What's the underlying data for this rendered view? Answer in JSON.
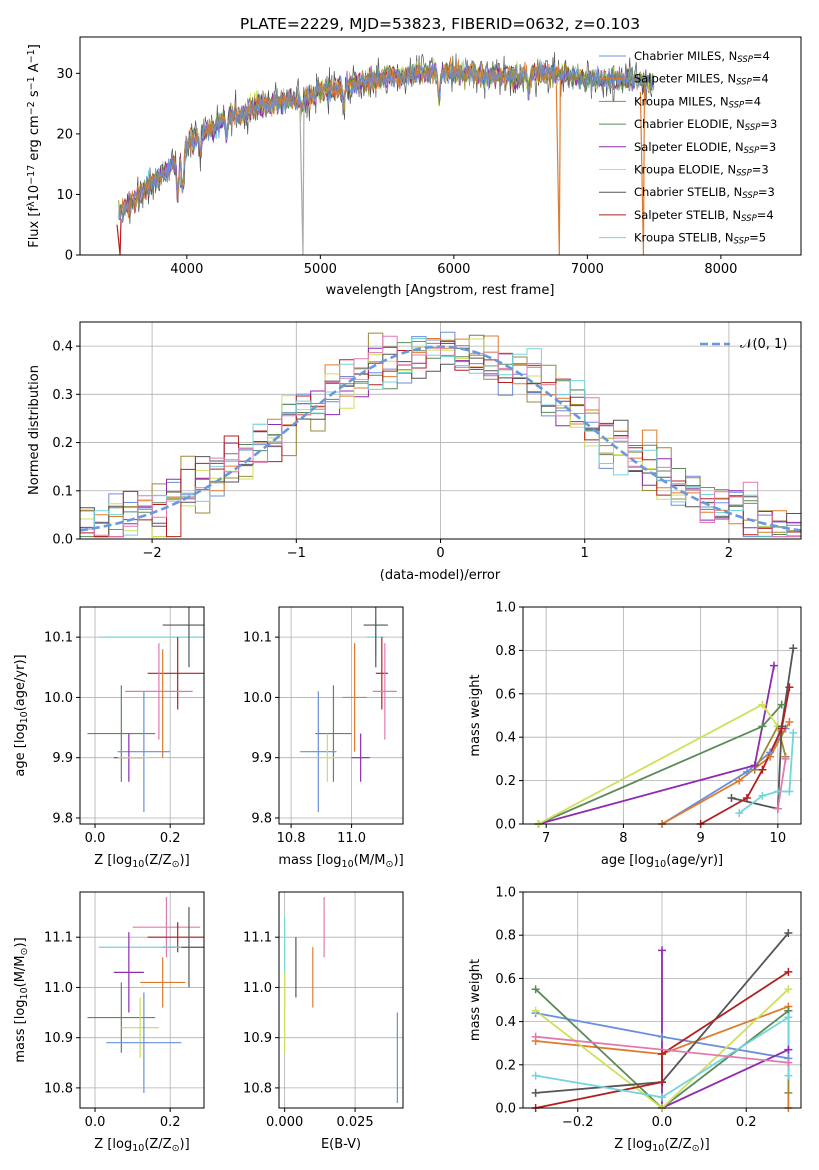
{
  "figure": {
    "title": "PLATE=2229, MJD=53823, FIBERID=0632, z=0.103"
  },
  "colors": {
    "Chabrier MILES": "#6a8fdc",
    "Salpeter MILES": "#e07b2c",
    "Kroupa MILES": "#9a8a3a",
    "Chabrier ELODIE": "#5a8a5a",
    "Salpeter ELODIE": "#8e2bb0",
    "Kroupa ELODIE": "#cfe05a",
    "Chabrier STELIB": "#555555",
    "Salpeter STELIB": "#b22020",
    "Kroupa STELIB": "#72d4dc",
    "extra": "#e07ab0"
  },
  "chart_data": [
    {
      "id": "spectrum",
      "type": "line",
      "xlabel": "wavelength [Angstrom, rest frame]",
      "ylabel": "Flux [f$_\\lambda$10$^{-17}$ erg cm$^{-2}$ s$^{-1}$ A$^{-1}$]",
      "ylabel_parts": [
        "Flux [f",
        "λ",
        "10",
        "−17",
        " erg cm",
        "−2",
        " s",
        "−1",
        " A",
        "−1",
        "]"
      ],
      "xlim": [
        3200,
        8600
      ],
      "ylim": [
        0,
        36
      ],
      "xticks": [
        4000,
        5000,
        6000,
        7000,
        8000
      ],
      "yticks": [
        0,
        10,
        20,
        30
      ],
      "legend_placement": "right",
      "legend": [
        {
          "label": "Chabrier MILES, N",
          "sub": "SSP",
          "suffix": "=4",
          "color_key": "Chabrier MILES"
        },
        {
          "label": "Salpeter MILES, N",
          "sub": "SSP",
          "suffix": "=4",
          "color_key": "Salpeter MILES"
        },
        {
          "label": "Kroupa MILES, N",
          "sub": "SSP",
          "suffix": "=4",
          "color_key": "Kroupa MILES"
        },
        {
          "label": "Chabrier ELODIE, N",
          "sub": "SSP",
          "suffix": "=3",
          "color_key": "Chabrier ELODIE"
        },
        {
          "label": "Salpeter ELODIE, N",
          "sub": "SSP",
          "suffix": "=3",
          "color_key": "Salpeter ELODIE"
        },
        {
          "label": "Kroupa ELODIE, N",
          "sub": "SSP",
          "suffix": "=3",
          "color_key": "Kroupa ELODIE"
        },
        {
          "label": "Chabrier STELIB, N",
          "sub": "SSP",
          "suffix": "=3",
          "color_key": "Chabrier STELIB"
        },
        {
          "label": "Salpeter STELIB, N",
          "sub": "SSP",
          "suffix": "=4",
          "color_key": "Salpeter STELIB"
        },
        {
          "label": "Kroupa STELIB, N",
          "sub": "SSP",
          "suffix": "=5",
          "color_key": "Kroupa STELIB"
        }
      ],
      "continuum": [
        [
          3500,
          7
        ],
        [
          3600,
          9
        ],
        [
          3700,
          11
        ],
        [
          3800,
          13
        ],
        [
          3900,
          15
        ],
        [
          4000,
          18
        ],
        [
          4100,
          20
        ],
        [
          4200,
          21
        ],
        [
          4300,
          23
        ],
        [
          4400,
          23
        ],
        [
          4500,
          24.5
        ],
        [
          4600,
          25
        ],
        [
          4700,
          25.5
        ],
        [
          4800,
          25.5
        ],
        [
          4900,
          26
        ],
        [
          5000,
          27
        ],
        [
          5100,
          27.5
        ],
        [
          5200,
          28
        ],
        [
          5300,
          28.5
        ],
        [
          5400,
          29
        ],
        [
          5500,
          29.5
        ],
        [
          5600,
          29.5
        ],
        [
          5700,
          30
        ],
        [
          5800,
          30
        ],
        [
          5900,
          30.5
        ],
        [
          6000,
          30
        ],
        [
          6100,
          30
        ],
        [
          6200,
          29.5
        ],
        [
          6300,
          29.5
        ],
        [
          6400,
          29.5
        ],
        [
          6500,
          29.5
        ],
        [
          6600,
          30
        ],
        [
          6700,
          30
        ],
        [
          6800,
          30
        ],
        [
          6900,
          29.5
        ],
        [
          7000,
          29
        ],
        [
          7100,
          29
        ],
        [
          7200,
          29
        ],
        [
          7300,
          29
        ],
        [
          7400,
          29
        ],
        [
          7500,
          28.5
        ]
      ],
      "absorption_features": [
        [
          3933,
          10
        ],
        [
          3968,
          11
        ],
        [
          4101,
          17
        ],
        [
          4300,
          20
        ],
        [
          4861,
          24
        ],
        [
          5175,
          25
        ],
        [
          5890,
          26
        ],
        [
          6563,
          27
        ]
      ],
      "data_dropouts": [
        [
          3500,
          0
        ],
        [
          4870,
          0
        ],
        [
          6790,
          0
        ],
        [
          7420,
          0
        ]
      ]
    },
    {
      "id": "residual-hist",
      "type": "line",
      "xlabel": "(data-model)/error",
      "ylabel": "Normed distribution",
      "xlim": [
        -2.5,
        2.5
      ],
      "ylim": [
        0,
        0.45
      ],
      "xticks": [
        -2,
        -1,
        0,
        1,
        2
      ],
      "yticks": [
        0.0,
        0.1,
        0.2,
        0.3,
        0.4
      ],
      "legend": [
        "𝒩(0, 1)"
      ],
      "legend_placement": "top-right",
      "bin_width": 0.1,
      "gaussian": {
        "mean": 0,
        "sigma": 1
      }
    },
    {
      "id": "age-vs-Z",
      "type": "scatter",
      "xlabel_parts": [
        "Z [log",
        "10",
        "(Z/Z",
        "⊙",
        ")]"
      ],
      "ylabel_parts": [
        "age  [log",
        "10",
        "(age/yr)]"
      ],
      "xlim": [
        -0.04,
        0.29
      ],
      "ylim": [
        9.79,
        10.15
      ],
      "xticks": [
        "0.0",
        "0.2"
      ],
      "yticks": [
        "9.8",
        "9.9",
        "10.0",
        "10.1"
      ],
      "errorbars": [
        {
          "color_key": "Kroupa STELIB",
          "x": 0.17,
          "xerr": 0.16,
          "y": 10.1,
          "yerr": 0.0
        },
        {
          "color_key": "Chabrier STELIB",
          "x": 0.25,
          "xerr": 0.07,
          "y": 10.12,
          "yerr": 0.07
        },
        {
          "color_key": "Salpeter STELIB",
          "x": 0.22,
          "xerr": 0.08,
          "y": 10.04,
          "yerr": 0.06
        },
        {
          "color_key": "extra",
          "x": 0.17,
          "xerr": 0.09,
          "y": 10.01,
          "yerr": 0.08
        },
        {
          "color_key": "Salpeter MILES",
          "x": 0.18,
          "xerr": 0.0,
          "y": 9.99,
          "yerr": 0.09
        },
        {
          "color_key": "Chabrier ELODIE",
          "x": 0.07,
          "xerr": 0.09,
          "y": 9.94,
          "yerr": 0.08
        },
        {
          "color_key": "Chabrier MILES",
          "x": 0.13,
          "xerr": 0.07,
          "y": 9.91,
          "yerr": 0.1
        },
        {
          "color_key": "Salpeter ELODIE",
          "x": 0.09,
          "xerr": 0.04,
          "y": 9.9,
          "yerr": 0.04
        },
        {
          "color_key": "Kroupa ELODIE",
          "x": 0.1,
          "xerr": 0.04,
          "y": 9.9,
          "yerr": 0.0
        }
      ]
    },
    {
      "id": "age-vs-mass",
      "type": "scatter",
      "xlabel_parts": [
        "mass [log",
        "10",
        "(M/M",
        "⊙",
        ")]"
      ],
      "xlim": [
        10.76,
        11.17
      ],
      "ylim": [
        9.79,
        10.15
      ],
      "xticks": [
        "10.8",
        "11.0"
      ],
      "yticks": [
        "9.8",
        "9.9",
        "10.0",
        "10.1"
      ],
      "errorbars": [
        {
          "color_key": "Kroupa STELIB",
          "x": 11.08,
          "xerr": 0.03,
          "y": 10.1,
          "yerr": 0.03
        },
        {
          "color_key": "Chabrier STELIB",
          "x": 11.08,
          "xerr": 0.04,
          "y": 10.12,
          "yerr": 0.07
        },
        {
          "color_key": "Salpeter STELIB",
          "x": 11.1,
          "xerr": 0.02,
          "y": 10.04,
          "yerr": 0.06
        },
        {
          "color_key": "extra",
          "x": 11.11,
          "xerr": 0.04,
          "y": 10.01,
          "yerr": 0.08
        },
        {
          "color_key": "Salpeter MILES",
          "x": 11.01,
          "xerr": 0.04,
          "y": 10.0,
          "yerr": 0.09
        },
        {
          "color_key": "Chabrier ELODIE",
          "x": 10.94,
          "xerr": 0.06,
          "y": 9.94,
          "yerr": 0.08
        },
        {
          "color_key": "Chabrier MILES",
          "x": 10.89,
          "xerr": 0.06,
          "y": 9.91,
          "yerr": 0.1
        },
        {
          "color_key": "Salpeter ELODIE",
          "x": 11.03,
          "xerr": 0.03,
          "y": 9.9,
          "yerr": 0.04
        },
        {
          "color_key": "Kroupa ELODIE",
          "x": 10.92,
          "xerr": 0.03,
          "y": 9.9,
          "yerr": 0.04
        }
      ]
    },
    {
      "id": "weight-vs-age",
      "type": "line",
      "xlabel_parts": [
        "age  [log",
        "10",
        "(age/yr)]"
      ],
      "ylabel": "mass weight",
      "xlim": [
        6.7,
        10.3
      ],
      "ylim": [
        0,
        1.0
      ],
      "xticks": [
        "7",
        "8",
        "9",
        "10"
      ],
      "yticks": [
        "0.0",
        "0.2",
        "0.4",
        "0.6",
        "0.8",
        "1.0"
      ],
      "series": [
        {
          "color_key": "Chabrier MILES",
          "x": [
            8.5,
            9.6,
            9.9,
            10.1
          ],
          "y": [
            0.0,
            0.24,
            0.33,
            0.44
          ]
        },
        {
          "color_key": "Salpeter MILES",
          "x": [
            8.5,
            9.5,
            9.9,
            10.15
          ],
          "y": [
            0.0,
            0.2,
            0.31,
            0.47
          ]
        },
        {
          "color_key": "Kroupa MILES",
          "x": [
            9.7,
            10.0,
            10.1
          ],
          "y": [
            0.25,
            0.45,
            0.31
          ]
        },
        {
          "color_key": "Chabrier ELODIE",
          "x": [
            6.9,
            9.8,
            10.05
          ],
          "y": [
            0.0,
            0.45,
            0.55
          ]
        },
        {
          "color_key": "Salpeter ELODIE",
          "x": [
            6.9,
            9.7,
            9.95
          ],
          "y": [
            0.0,
            0.27,
            0.73
          ]
        },
        {
          "color_key": "Kroupa ELODIE",
          "x": [
            6.9,
            9.8,
            10.0
          ],
          "y": [
            0.0,
            0.55,
            0.45
          ]
        },
        {
          "color_key": "Chabrier STELIB",
          "x": [
            9.4,
            10.0,
            10.05,
            10.2
          ],
          "y": [
            0.12,
            0.07,
            0.45,
            0.81
          ]
        },
        {
          "color_key": "Salpeter STELIB",
          "x": [
            9.0,
            9.6,
            9.8,
            10.05,
            10.15
          ],
          "y": [
            0.0,
            0.12,
            0.25,
            0.44,
            0.63
          ]
        },
        {
          "color_key": "Kroupa STELIB",
          "x": [
            9.5,
            9.8,
            10.0,
            10.15,
            10.2
          ],
          "y": [
            0.05,
            0.13,
            0.15,
            0.15,
            0.42
          ]
        },
        {
          "color_key": "extra",
          "x": [
            10.0,
            10.1
          ],
          "y": [
            0.07,
            0.3
          ]
        }
      ]
    },
    {
      "id": "mass-vs-Z",
      "type": "scatter",
      "xlabel_parts": [
        "Z [log",
        "10",
        "(Z/Z",
        "⊙",
        ")]"
      ],
      "ylabel_parts": [
        "mass [log",
        "10",
        "(M/M",
        "⊙",
        ")]"
      ],
      "xlim": [
        -0.04,
        0.29
      ],
      "ylim": [
        10.76,
        11.19
      ],
      "xticks": [
        "0.0",
        "0.2"
      ],
      "yticks": [
        "10.8",
        "10.9",
        "11.0",
        "11.1"
      ],
      "errorbars": [
        {
          "color_key": "extra",
          "x": 0.19,
          "xerr": 0.09,
          "y": 11.12,
          "yerr": 0.06
        },
        {
          "color_key": "Salpeter STELIB",
          "x": 0.22,
          "xerr": 0.08,
          "y": 11.1,
          "yerr": 0.03
        },
        {
          "color_key": "Chabrier STELIB",
          "x": 0.25,
          "xerr": 0.07,
          "y": 11.08,
          "yerr": 0.08
        },
        {
          "color_key": "Kroupa STELIB",
          "x": 0.12,
          "xerr": 0.11,
          "y": 11.08,
          "yerr": 0.0
        },
        {
          "color_key": "Salpeter ELODIE",
          "x": 0.09,
          "xerr": 0.04,
          "y": 11.03,
          "yerr": 0.08
        },
        {
          "color_key": "Salpeter MILES",
          "x": 0.18,
          "xerr": 0.06,
          "y": 11.01,
          "yerr": 0.05
        },
        {
          "color_key": "Chabrier ELODIE",
          "x": 0.07,
          "xerr": 0.09,
          "y": 10.94,
          "yerr": 0.07
        },
        {
          "color_key": "Kroupa ELODIE",
          "x": 0.12,
          "xerr": 0.05,
          "y": 10.92,
          "yerr": 0.06
        },
        {
          "color_key": "Chabrier MILES",
          "x": 0.13,
          "xerr": 0.1,
          "y": 10.89,
          "yerr": 0.1
        }
      ]
    },
    {
      "id": "mass-vs-ebv",
      "type": "scatter",
      "xlabel": "E(B-V)",
      "xlim": [
        -0.002,
        0.042
      ],
      "ylim": [
        10.76,
        11.19
      ],
      "xticks": [
        "0.000",
        "0.025"
      ],
      "yticks": [
        "10.8",
        "10.9",
        "11.0",
        "11.1"
      ],
      "errorbars": [
        {
          "color_key": "extra",
          "x": 0.014,
          "y": 11.12,
          "yerr": 0.06
        },
        {
          "color_key": "Chabrier STELIB",
          "x": 0.004,
          "y": 11.04,
          "yerr": 0.06
        },
        {
          "color_key": "Kroupa STELIB",
          "x": 0.0,
          "y": 11.05,
          "yerr": 0.09
        },
        {
          "color_key": "Salpeter MILES",
          "x": 0.01,
          "y": 11.02,
          "yerr": 0.06
        },
        {
          "color_key": "Kroupa ELODIE",
          "x": 0.0,
          "y": 10.95,
          "yerr": 0.08
        },
        {
          "color_key": "Chabrier MILES",
          "x": 0.04,
          "y": 10.86,
          "yerr": 0.09
        }
      ]
    },
    {
      "id": "weight-vs-Z",
      "type": "line",
      "xlabel_parts": [
        "Z [log",
        "10",
        "(Z/Z",
        "⊙",
        ")]"
      ],
      "ylabel": "mass weight",
      "xlim": [
        -0.33,
        0.33
      ],
      "ylim": [
        0,
        1.0
      ],
      "xticks": [
        "−0.2",
        "0.0",
        "0.2"
      ],
      "xtick_values": [
        -0.2,
        0.0,
        0.2
      ],
      "yticks": [
        "0.0",
        "0.2",
        "0.4",
        "0.6",
        "0.8",
        "1.0"
      ],
      "series": [
        {
          "color_key": "Chabrier MILES",
          "x": [
            -0.3,
            0.0,
            0.3
          ],
          "y": [
            0.44,
            0.33,
            0.23
          ]
        },
        {
          "color_key": "Salpeter MILES",
          "x": [
            -0.3,
            0.0,
            0.3,
            0.3
          ],
          "y": [
            0.31,
            0.25,
            0.47,
            0.0
          ]
        },
        {
          "color_key": "Kroupa MILES",
          "x": [
            0.3,
            0.3
          ],
          "y": [
            0.45,
            0.07
          ]
        },
        {
          "color_key": "Chabrier ELODIE",
          "x": [
            -0.3,
            0.0,
            0.3
          ],
          "y": [
            0.55,
            0.0,
            0.45
          ]
        },
        {
          "color_key": "Salpeter ELODIE",
          "x": [
            0.0,
            0.0,
            0.3
          ],
          "y": [
            0.73,
            0.0,
            0.27
          ]
        },
        {
          "color_key": "Kroupa ELODIE",
          "x": [
            -0.3,
            0.0,
            0.3
          ],
          "y": [
            0.45,
            0.0,
            0.55
          ]
        },
        {
          "color_key": "Chabrier STELIB",
          "x": [
            -0.3,
            0.0,
            0.3
          ],
          "y": [
            0.07,
            0.12,
            0.81
          ]
        },
        {
          "color_key": "Salpeter STELIB",
          "x": [
            -0.3,
            0.0,
            0.0,
            0.3
          ],
          "y": [
            0.0,
            0.12,
            0.25,
            0.63
          ]
        },
        {
          "color_key": "Kroupa STELIB",
          "x": [
            -0.3,
            0.0,
            0.3,
            0.3
          ],
          "y": [
            0.15,
            0.05,
            0.42,
            0.15
          ]
        },
        {
          "color_key": "extra",
          "x": [
            -0.3,
            0.3
          ],
          "y": [
            0.33,
            0.21
          ]
        }
      ]
    }
  ]
}
